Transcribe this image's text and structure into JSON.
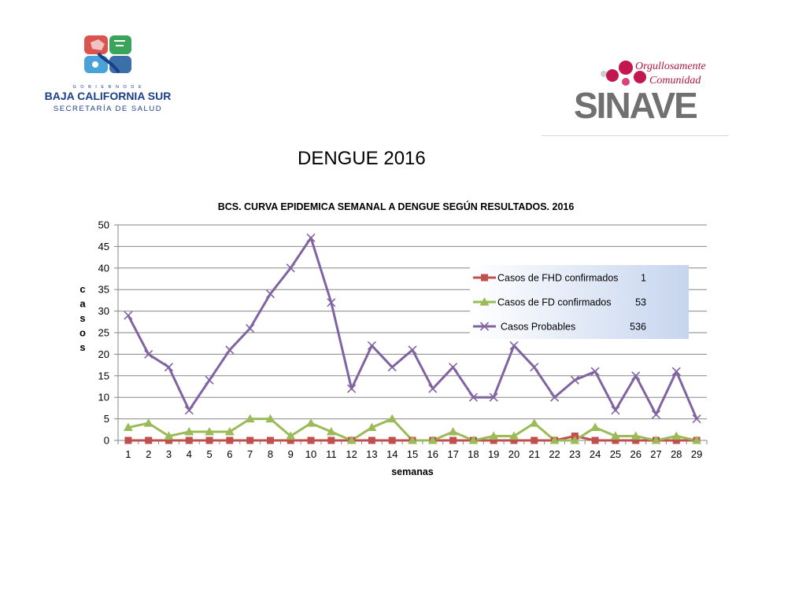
{
  "page": {
    "title": "DENGUE 2016"
  },
  "logos": {
    "left": {
      "line1": "G O B I E R N O   D E",
      "line2": "BAJA CALIFORNIA SUR",
      "line3": "SECRETARÍA DE SALUD"
    },
    "right": {
      "tagline1": "Orgullosamente",
      "tagline2": "Comunidad",
      "wordmark": "SINAVE"
    }
  },
  "colors": {
    "fhd": "#c0504d",
    "fd": "#9bbb59",
    "prob": "#8064a2",
    "grid": "#868686"
  },
  "chart_data": {
    "type": "line",
    "title": "BCS. CURVA EPIDEMICA SEMANAL A DENGUE SEGÚN RESULTADOS. 2016",
    "xlabel": "semanas",
    "ylabel": "casos",
    "ylim": [
      0,
      50
    ],
    "yticks": [
      0,
      5,
      10,
      15,
      20,
      25,
      30,
      35,
      40,
      45,
      50
    ],
    "grid": true,
    "legend": "right",
    "categories": [
      1,
      2,
      3,
      4,
      5,
      6,
      7,
      8,
      9,
      10,
      11,
      12,
      13,
      14,
      15,
      16,
      17,
      18,
      19,
      20,
      21,
      22,
      23,
      24,
      25,
      26,
      27,
      28,
      29
    ],
    "series": [
      {
        "name": "Casos de FHD confirmados",
        "total": "1",
        "marker": "square",
        "values": [
          0,
          0,
          0,
          0,
          0,
          0,
          0,
          0,
          0,
          0,
          0,
          0,
          0,
          0,
          0,
          0,
          0,
          0,
          0,
          0,
          0,
          0,
          1,
          0,
          0,
          0,
          0,
          0,
          0
        ]
      },
      {
        "name": "Casos de FD confirmados",
        "total": "53",
        "marker": "triangle",
        "values": [
          3,
          4,
          1,
          2,
          2,
          2,
          5,
          5,
          1,
          4,
          2,
          0,
          3,
          5,
          0,
          0,
          2,
          0,
          1,
          1,
          4,
          0,
          0,
          3,
          1,
          1,
          0,
          1,
          0
        ]
      },
      {
        "name": "Casos  Probables",
        "total": "536",
        "marker": "x",
        "values": [
          29,
          20,
          17,
          7,
          14,
          21,
          26,
          34,
          40,
          47,
          32,
          12,
          22,
          17,
          21,
          12,
          17,
          10,
          10,
          22,
          17,
          10,
          14,
          16,
          7,
          15,
          6,
          16,
          5
        ]
      }
    ]
  }
}
